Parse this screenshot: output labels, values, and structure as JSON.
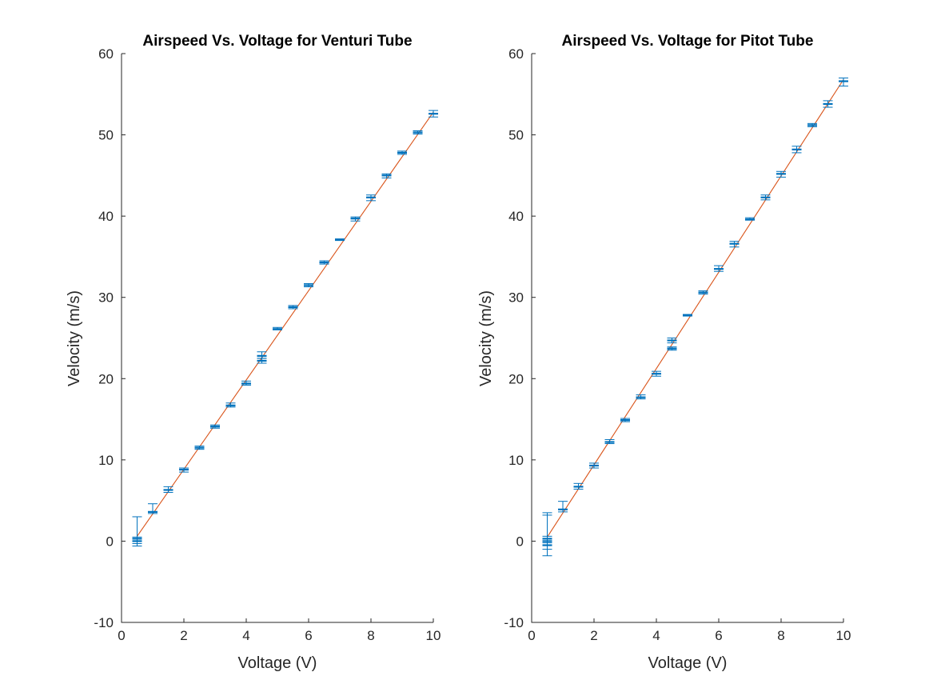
{
  "chart_data": [
    {
      "type": "scatter",
      "title": "Airspeed Vs. Voltage for Venturi Tube",
      "xlabel": "Voltage (V)",
      "ylabel": "Velocity (m/s)",
      "xlim": [
        0,
        10
      ],
      "ylim": [
        -10,
        60
      ],
      "xticks": [
        "0",
        "2",
        "4",
        "6",
        "8",
        "10"
      ],
      "yticks": [
        "-10",
        "0",
        "10",
        "20",
        "30",
        "40",
        "50",
        "60"
      ],
      "grid": false,
      "fit_line": {
        "x": [
          0.5,
          10
        ],
        "y": [
          0.6,
          52.8
        ]
      },
      "series": [
        {
          "errorbars": [
            {
              "x": 0.5,
              "y": 0.0,
              "low": -0.6,
              "high": 3.0
            },
            {
              "x": 0.5,
              "y": 0.3,
              "low": -0.3,
              "high": 0.5
            },
            {
              "x": 1.0,
              "y": 3.6,
              "low": 3.4,
              "high": 4.6
            },
            {
              "x": 1.5,
              "y": 6.3,
              "low": 6.0,
              "high": 6.7
            },
            {
              "x": 2.0,
              "y": 8.8,
              "low": 8.5,
              "high": 9.0
            },
            {
              "x": 2.5,
              "y": 11.5,
              "low": 11.3,
              "high": 11.7
            },
            {
              "x": 3.0,
              "y": 14.1,
              "low": 13.9,
              "high": 14.3
            },
            {
              "x": 3.5,
              "y": 16.7,
              "low": 16.5,
              "high": 17.0
            },
            {
              "x": 4.0,
              "y": 19.4,
              "low": 19.2,
              "high": 19.7
            },
            {
              "x": 4.5,
              "y": 22.2,
              "low": 21.9,
              "high": 22.5
            },
            {
              "x": 4.5,
              "y": 22.8,
              "low": 22.5,
              "high": 23.3
            },
            {
              "x": 5.0,
              "y": 26.1,
              "low": 26.0,
              "high": 26.3
            },
            {
              "x": 5.5,
              "y": 28.8,
              "low": 28.6,
              "high": 29.0
            },
            {
              "x": 6.0,
              "y": 31.5,
              "low": 31.3,
              "high": 31.7
            },
            {
              "x": 6.5,
              "y": 34.3,
              "low": 34.1,
              "high": 34.5
            },
            {
              "x": 7.0,
              "y": 37.1,
              "low": 37.0,
              "high": 37.2
            },
            {
              "x": 7.5,
              "y": 39.7,
              "low": 39.4,
              "high": 39.9
            },
            {
              "x": 8.0,
              "y": 42.3,
              "low": 41.9,
              "high": 42.6
            },
            {
              "x": 8.5,
              "y": 45.0,
              "low": 44.7,
              "high": 45.2
            },
            {
              "x": 9.0,
              "y": 47.8,
              "low": 47.6,
              "high": 48.0
            },
            {
              "x": 9.5,
              "y": 50.3,
              "low": 50.1,
              "high": 50.5
            },
            {
              "x": 10.0,
              "y": 52.6,
              "low": 52.2,
              "high": 53.0
            }
          ]
        }
      ]
    },
    {
      "type": "scatter",
      "title": "Airspeed Vs. Voltage for Pitot Tube",
      "xlabel": "Voltage (V)",
      "ylabel": "Velocity (m/s)",
      "xlim": [
        0,
        10
      ],
      "ylim": [
        -10,
        60
      ],
      "xticks": [
        "0",
        "2",
        "4",
        "6",
        "8",
        "10"
      ],
      "yticks": [
        "-10",
        "0",
        "10",
        "20",
        "30",
        "40",
        "50",
        "60"
      ],
      "grid": false,
      "fit_line": {
        "x": [
          0.5,
          10
        ],
        "y": [
          0.5,
          56.8
        ]
      },
      "series": [
        {
          "errorbars": [
            {
              "x": 0.5,
              "y": 0.0,
              "low": -1.8,
              "high": 3.5
            },
            {
              "x": 0.5,
              "y": -0.5,
              "low": -1.0,
              "high": 3.2
            },
            {
              "x": 0.5,
              "y": 0.3,
              "low": -0.2,
              "high": 0.6
            },
            {
              "x": 1.0,
              "y": 3.9,
              "low": 3.6,
              "high": 4.9
            },
            {
              "x": 1.5,
              "y": 6.7,
              "low": 6.4,
              "high": 7.1
            },
            {
              "x": 2.0,
              "y": 9.3,
              "low": 9.0,
              "high": 9.6
            },
            {
              "x": 2.5,
              "y": 12.2,
              "low": 12.0,
              "high": 12.5
            },
            {
              "x": 3.0,
              "y": 14.9,
              "low": 14.7,
              "high": 15.1
            },
            {
              "x": 3.5,
              "y": 17.7,
              "low": 17.5,
              "high": 18.0
            },
            {
              "x": 4.0,
              "y": 20.6,
              "low": 20.3,
              "high": 20.9
            },
            {
              "x": 4.5,
              "y": 23.7,
              "low": 23.5,
              "high": 23.9
            },
            {
              "x": 4.5,
              "y": 24.7,
              "low": 24.4,
              "high": 25.0
            },
            {
              "x": 5.0,
              "y": 27.8,
              "low": 27.7,
              "high": 27.9
            },
            {
              "x": 5.5,
              "y": 30.6,
              "low": 30.4,
              "high": 30.8
            },
            {
              "x": 6.0,
              "y": 33.5,
              "low": 33.2,
              "high": 33.9
            },
            {
              "x": 6.5,
              "y": 36.6,
              "low": 36.2,
              "high": 36.9
            },
            {
              "x": 7.0,
              "y": 39.6,
              "low": 39.5,
              "high": 39.8
            },
            {
              "x": 7.5,
              "y": 42.3,
              "low": 42.0,
              "high": 42.6
            },
            {
              "x": 8.0,
              "y": 45.2,
              "low": 44.8,
              "high": 45.5
            },
            {
              "x": 8.5,
              "y": 48.2,
              "low": 47.8,
              "high": 48.6
            },
            {
              "x": 9.0,
              "y": 51.2,
              "low": 51.0,
              "high": 51.4
            },
            {
              "x": 9.5,
              "y": 53.8,
              "low": 53.4,
              "high": 54.2
            },
            {
              "x": 10.0,
              "y": 56.6,
              "low": 56.0,
              "high": 57.0
            }
          ]
        }
      ]
    }
  ]
}
